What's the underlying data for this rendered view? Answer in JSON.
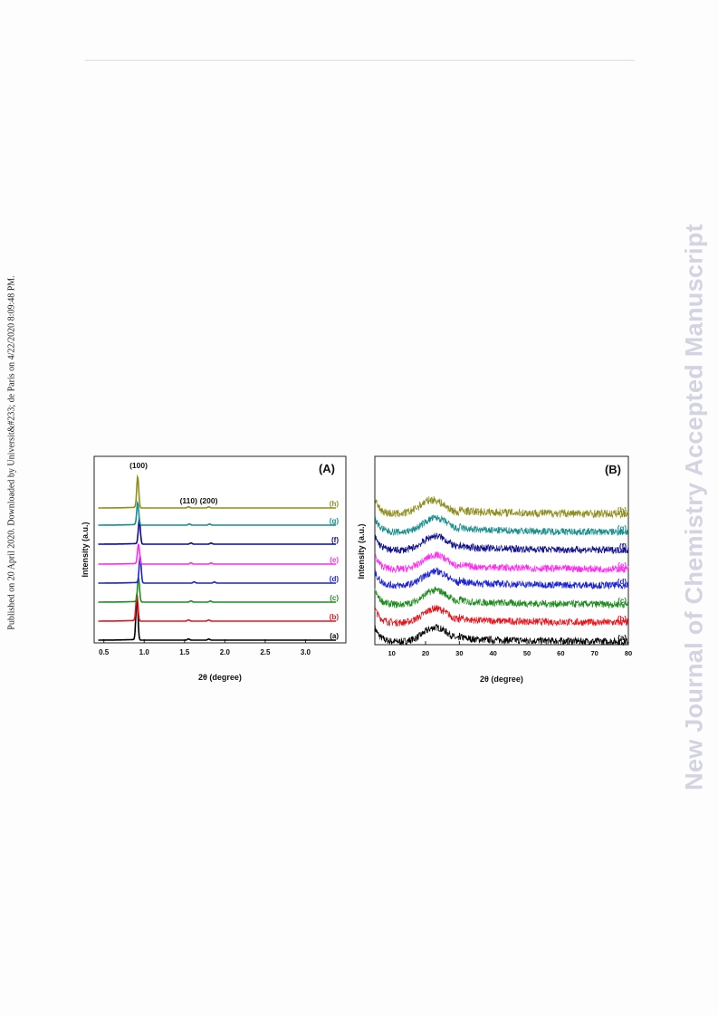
{
  "publication_note": "Published on 20 April 2020. Downloaded by Universit&#233; de Paris on 4/22/2020 8:09:48 PM.",
  "watermark": "New Journal of Chemistry Accepted Manuscript",
  "colors": {
    "a": "#000000",
    "b": "#e8141b",
    "c": "#1f8c1f",
    "d": "#1c23d4",
    "e": "#ff2cf0",
    "f": "#0c0c8c",
    "g": "#168d8d",
    "h": "#8e8e1c"
  },
  "chart_data": [
    {
      "type": "line",
      "panel_label": "(A)",
      "xlabel": "2θ (degree)",
      "ylabel": "Intensity (a.u.)",
      "xlim": [
        0.38,
        3.5
      ],
      "xticks": [
        0.5,
        1.0,
        1.5,
        2.0,
        2.5,
        3.0
      ],
      "xtick_labels": [
        "0.5",
        "1.0",
        "1.5",
        "2.0",
        "2.5",
        "3.0"
      ],
      "peak_annotations": [
        {
          "label": "(100)",
          "x": 0.93
        },
        {
          "label": "(110)",
          "x": 1.55
        },
        {
          "label": "(200)",
          "x": 1.8
        }
      ],
      "series": [
        {
          "name": "(a)",
          "color_key": "a",
          "peak_x": 0.91,
          "peak_height": 1.0,
          "minor_peaks": [
            1.55,
            1.8
          ]
        },
        {
          "name": "(b)",
          "color_key": "b",
          "peak_x": 0.91,
          "peak_height": 0.62,
          "minor_peaks": [
            1.55,
            1.8
          ]
        },
        {
          "name": "(c)",
          "color_key": "c",
          "peak_x": 0.93,
          "peak_height": 0.55,
          "minor_peaks": [
            1.58,
            1.82
          ]
        },
        {
          "name": "(d)",
          "color_key": "d",
          "peak_x": 0.95,
          "peak_height": 0.6,
          "minor_peaks": [
            1.62,
            1.87
          ]
        },
        {
          "name": "(e)",
          "color_key": "e",
          "peak_x": 0.93,
          "peak_height": 0.45,
          "minor_peaks": [
            1.58,
            1.83
          ]
        },
        {
          "name": "(f)",
          "color_key": "f",
          "peak_x": 0.94,
          "peak_height": 0.55,
          "minor_peaks": [
            1.58,
            1.83
          ]
        },
        {
          "name": "(g)",
          "color_key": "g",
          "peak_x": 0.92,
          "peak_height": 0.5,
          "minor_peaks": [
            1.56,
            1.81
          ]
        },
        {
          "name": "(h)",
          "color_key": "h",
          "peak_x": 0.92,
          "peak_height": 0.7,
          "minor_peaks": [
            1.55,
            1.8
          ]
        }
      ]
    },
    {
      "type": "line",
      "panel_label": "(B)",
      "xlabel": "2θ (degree)",
      "ylabel": "Intensity (a.u.)",
      "xlim": [
        5,
        80
      ],
      "xticks": [
        10,
        20,
        30,
        40,
        50,
        60,
        70,
        80
      ],
      "xtick_labels": [
        "10",
        "20",
        "30",
        "40",
        "50",
        "60",
        "70",
        "80"
      ],
      "series": [
        {
          "name": "(a)",
          "color_key": "a",
          "hump_center": 23
        },
        {
          "name": "(b)",
          "color_key": "b",
          "hump_center": 23
        },
        {
          "name": "(c)",
          "color_key": "c",
          "hump_center": 23
        },
        {
          "name": "(d)",
          "color_key": "d",
          "hump_center": 23
        },
        {
          "name": "(e)",
          "color_key": "e",
          "hump_center": 23
        },
        {
          "name": "(f)",
          "color_key": "f",
          "hump_center": 23
        },
        {
          "name": "(g)",
          "color_key": "g",
          "hump_center": 23
        },
        {
          "name": "(h)",
          "color_key": "h",
          "hump_center": 22
        }
      ]
    }
  ]
}
